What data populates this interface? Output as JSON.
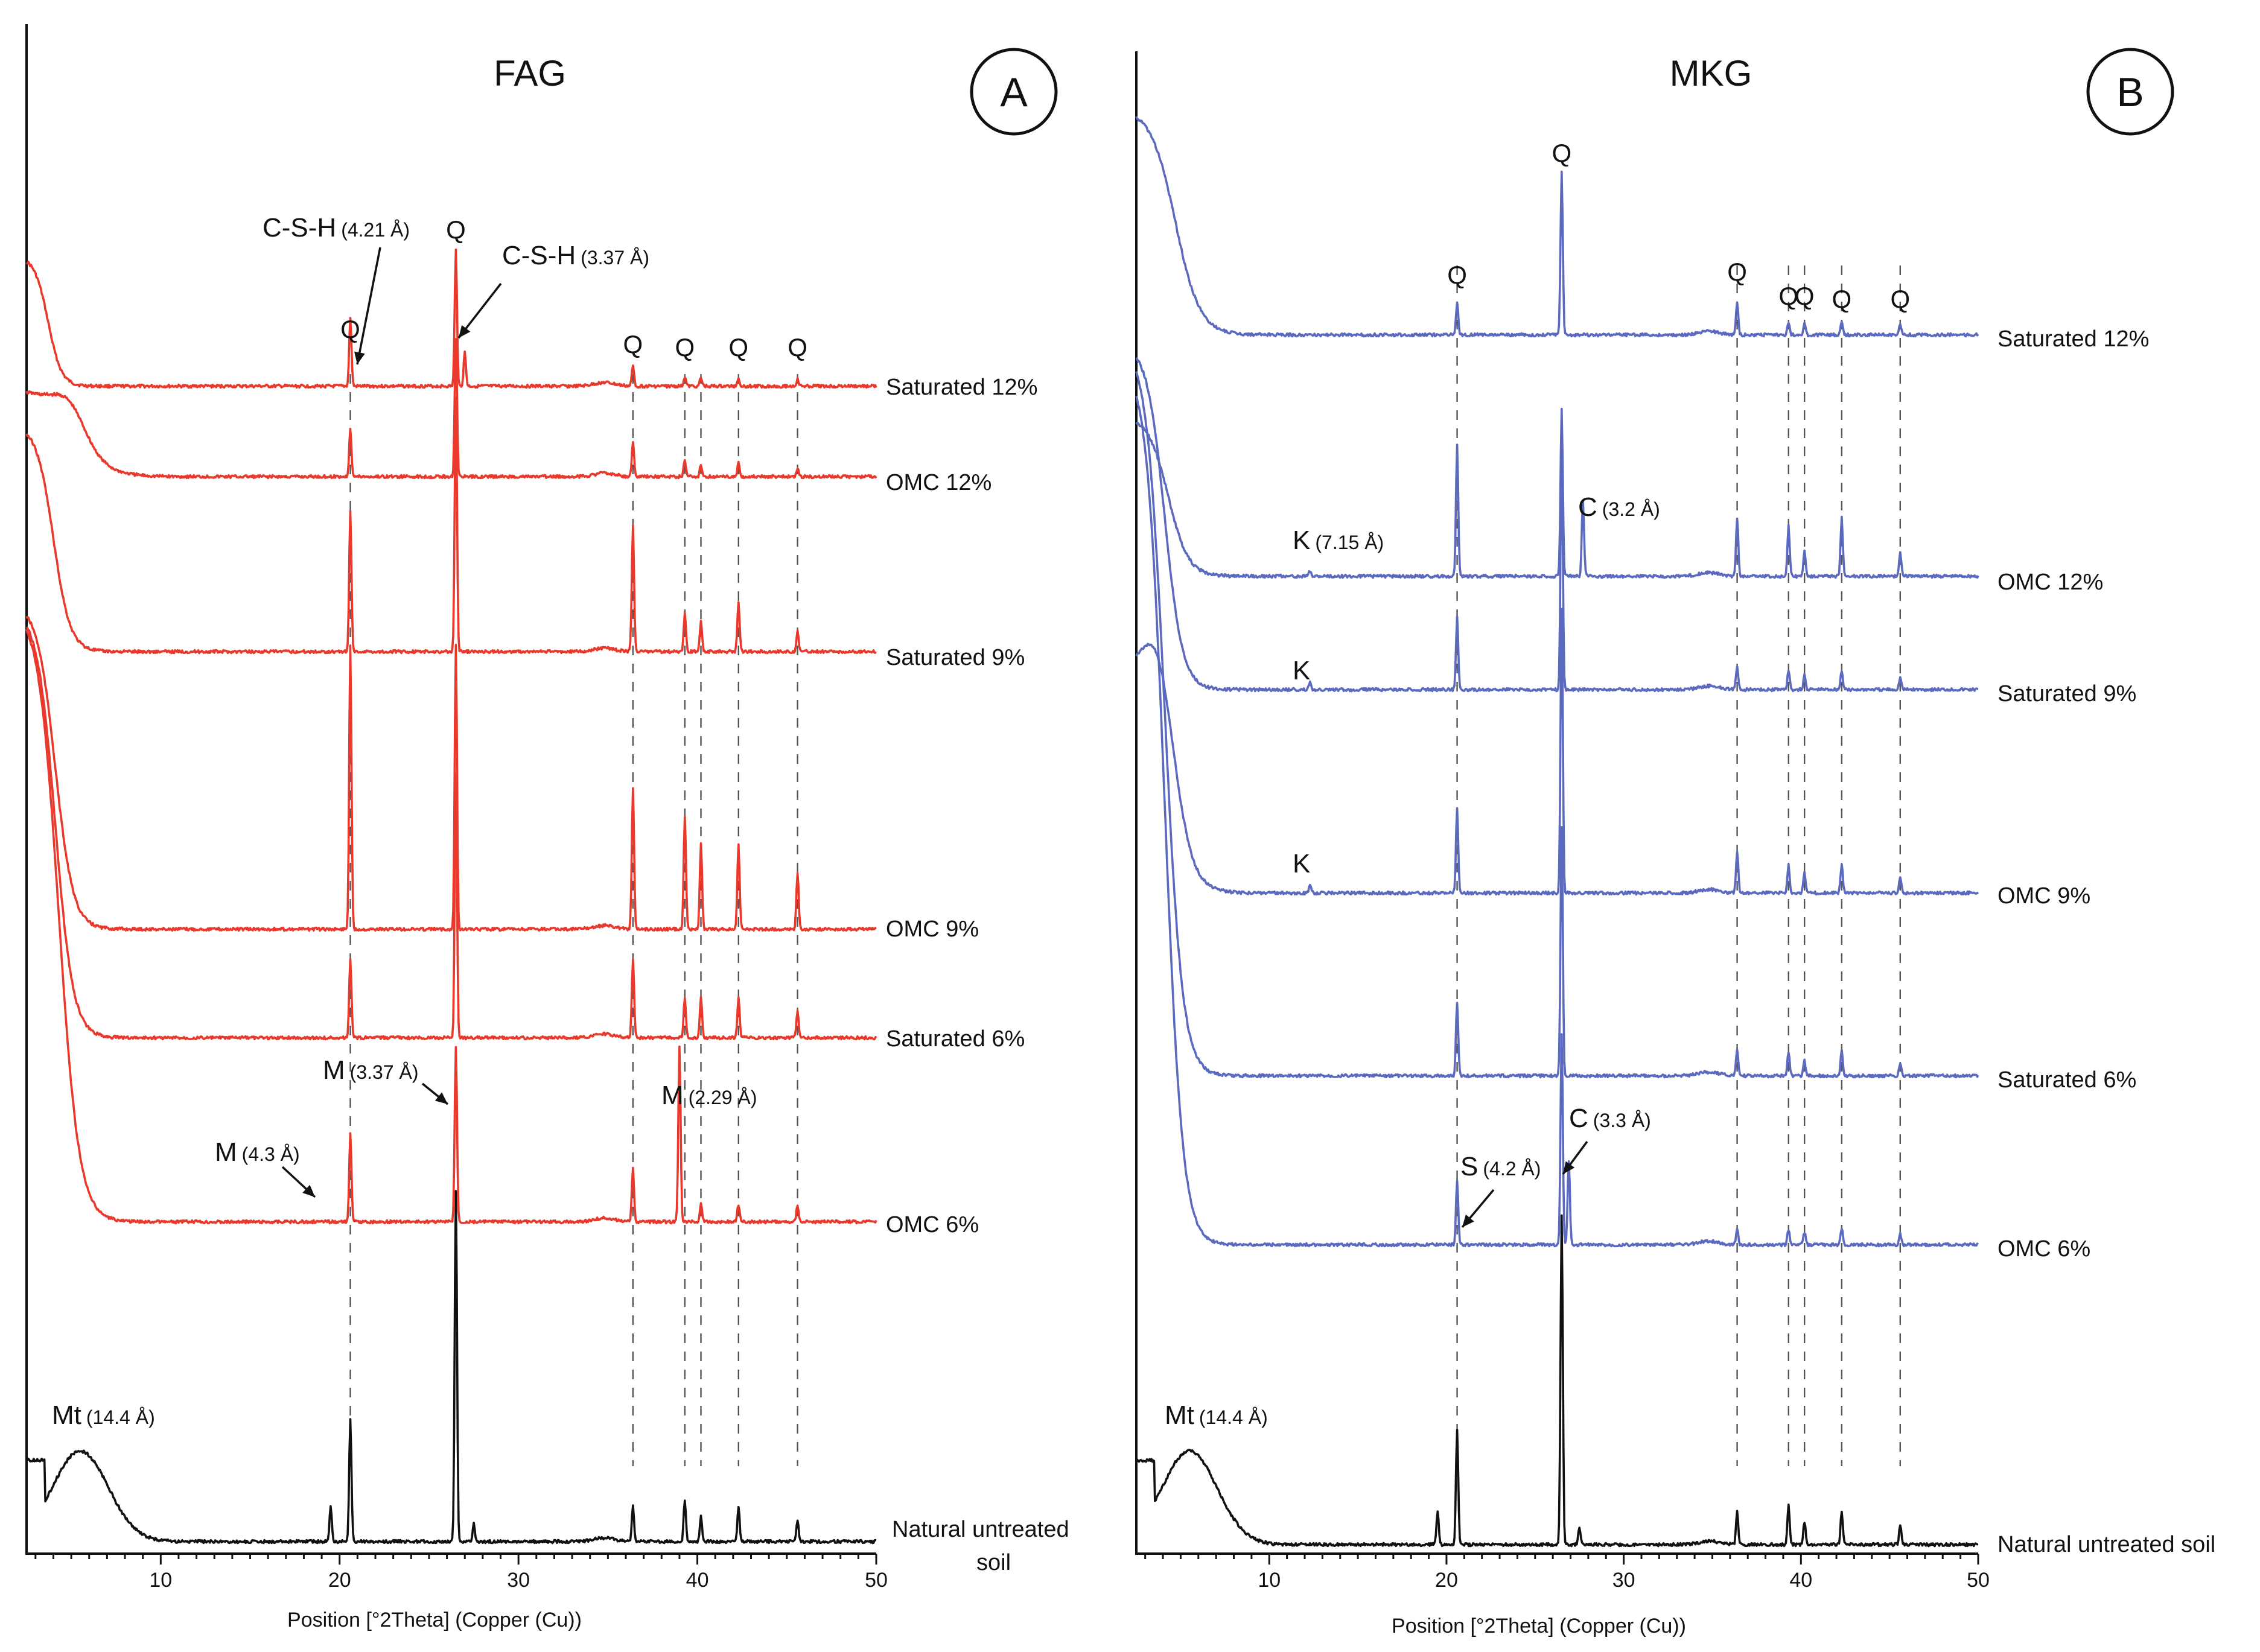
{
  "chart_data": [
    {
      "type": "line",
      "panel_letter": "A",
      "title": "FAG",
      "xlabel": "Position [°2Theta] (Copper (Cu))",
      "xlim": [
        2.5,
        50
      ],
      "xticks": [
        10,
        20,
        30,
        40,
        50
      ],
      "color": "#e8392c",
      "natural_color": "#111111",
      "reference_lines": [
        20.6,
        36.4,
        39.3,
        40.2,
        42.3,
        45.6
      ],
      "series": [
        {
          "name": "Saturated 12%",
          "fall_width": 1.2,
          "fall_tail": 3.0,
          "peaks": [
            [
              20.6,
              0.5
            ],
            [
              26.5,
              1.0
            ],
            [
              27.0,
              0.25
            ],
            [
              36.4,
              0.15
            ],
            [
              39.3,
              0.07
            ],
            [
              40.2,
              0.06
            ],
            [
              42.3,
              0.06
            ],
            [
              45.6,
              0.05
            ]
          ],
          "peak_labels": [
            {
              "text": "Q",
              "x": 20.6
            },
            {
              "text": "Q",
              "x": 26.5
            },
            {
              "text": "Q",
              "x": 36.4
            },
            {
              "text": "Q",
              "x": 39.3
            },
            {
              "text": "Q",
              "x": 42.3
            },
            {
              "text": "Q",
              "x": 45.6
            }
          ],
          "annotations": [
            {
              "main": "C-S-H",
              "sub": "(4.21 Å)",
              "x": 20.6,
              "at": "left"
            },
            {
              "main": "C-S-H",
              "sub": "(3.37 Å)",
              "x": 27.0,
              "at": "right"
            }
          ]
        },
        {
          "name": "OMC 12%",
          "fall_width": 2.8,
          "fall_tail": 3.0,
          "bump_x": 5.0,
          "peaks": [
            [
              20.6,
              0.35
            ],
            [
              26.5,
              1.0
            ],
            [
              36.4,
              0.25
            ],
            [
              39.3,
              0.12
            ],
            [
              40.2,
              0.08
            ],
            [
              42.3,
              0.1
            ],
            [
              45.6,
              0.06
            ]
          ],
          "peak_labels": [],
          "annotations": []
        },
        {
          "name": "Saturated 9%",
          "fall_width": 1.5,
          "fall_tail": 3.0,
          "peaks": [
            [
              20.6,
              0.55
            ],
            [
              26.5,
              1.0
            ],
            [
              36.4,
              0.5
            ],
            [
              39.3,
              0.15
            ],
            [
              40.2,
              0.12
            ],
            [
              42.3,
              0.2
            ],
            [
              45.6,
              0.08
            ]
          ],
          "peak_labels": [],
          "annotations": []
        },
        {
          "name": "OMC 9%",
          "fall_width": 1.6,
          "fall_tail": 3.0,
          "peaks": [
            [
              20.6,
              1.0
            ],
            [
              26.5,
              1.0
            ],
            [
              36.4,
              0.5
            ],
            [
              39.3,
              0.4
            ],
            [
              40.2,
              0.3
            ],
            [
              42.3,
              0.3
            ],
            [
              45.6,
              0.2
            ]
          ],
          "peak_labels": [],
          "annotations": []
        },
        {
          "name": "Saturated 6%",
          "fall_width": 1.6,
          "fall_tail": 3.0,
          "peaks": [
            [
              20.6,
              0.3
            ],
            [
              26.5,
              1.0
            ],
            [
              36.4,
              0.3
            ],
            [
              39.3,
              0.15
            ],
            [
              40.2,
              0.15
            ],
            [
              42.3,
              0.15
            ],
            [
              45.6,
              0.1
            ]
          ],
          "peak_labels": [],
          "annotations": []
        },
        {
          "name": "OMC 6%",
          "fall_width": 1.8,
          "fall_tail": 3.0,
          "peaks": [
            [
              20.6,
              0.5
            ],
            [
              26.5,
              1.0
            ],
            [
              36.4,
              0.3
            ],
            [
              39.0,
              1.0
            ],
            [
              40.2,
              0.1
            ],
            [
              42.3,
              0.1
            ],
            [
              45.6,
              0.1
            ]
          ],
          "peak_labels": [],
          "annotations": [
            {
              "main": "M",
              "sub": "(4.3 Å)",
              "x": 20.6,
              "at": "left"
            },
            {
              "main": "M",
              "sub": "(3.37 Å)",
              "x": 26.5,
              "at": "left"
            },
            {
              "main": "M",
              "sub": "(2.29 Å)",
              "x": 39.0,
              "at": "none"
            }
          ]
        },
        {
          "name": "Natural untreated soil",
          "fall_width": 0,
          "fall_tail": 0,
          "bump_x": 5.5,
          "peaks": [
            [
              19.5,
              0.1
            ],
            [
              20.6,
              0.35
            ],
            [
              26.5,
              1.0
            ],
            [
              27.5,
              0.05
            ],
            [
              36.4,
              0.1
            ],
            [
              39.3,
              0.12
            ],
            [
              40.2,
              0.07
            ],
            [
              42.3,
              0.1
            ],
            [
              45.6,
              0.06
            ]
          ],
          "peak_labels": [],
          "annotations": [
            {
              "main": "Mt",
              "sub": "(14.4 Å)",
              "x": 4.0,
              "at": "none"
            }
          ]
        }
      ]
    },
    {
      "type": "line",
      "panel_letter": "B",
      "title": "MKG",
      "xlabel": "Position [°2Theta] (Copper (Cu))",
      "xlim": [
        2.5,
        50
      ],
      "xticks": [
        10,
        20,
        30,
        40,
        50
      ],
      "color": "#5b6abf",
      "natural_color": "#111111",
      "reference_lines": [
        20.6,
        36.4,
        39.3,
        40.2,
        42.3,
        45.6
      ],
      "series": [
        {
          "name": "Saturated 12%",
          "fall_width": 2.2,
          "fall_tail": 3.0,
          "peaks": [
            [
              20.6,
              0.2
            ],
            [
              26.5,
              1.0
            ],
            [
              36.4,
              0.2
            ],
            [
              39.3,
              0.07
            ],
            [
              40.2,
              0.07
            ],
            [
              42.3,
              0.08
            ],
            [
              45.6,
              0.06
            ]
          ],
          "peak_labels": [
            {
              "text": "Q",
              "x": 20.6
            },
            {
              "text": "Q",
              "x": 26.5
            },
            {
              "text": "Q",
              "x": 36.4
            },
            {
              "text": "Q",
              "x": 39.3
            },
            {
              "text": "Q",
              "x": 40.2
            },
            {
              "text": "Q",
              "x": 42.3
            },
            {
              "text": "Q",
              "x": 45.6
            }
          ],
          "annotations": []
        },
        {
          "name": "OMC 12%",
          "fall_width": 1.8,
          "fall_tail": 3.0,
          "peaks": [
            [
              12.3,
              0.03
            ],
            [
              20.6,
              0.8
            ],
            [
              26.5,
              1.0
            ],
            [
              27.7,
              0.45
            ],
            [
              36.4,
              0.35
            ],
            [
              39.3,
              0.3
            ],
            [
              40.2,
              0.15
            ],
            [
              42.3,
              0.35
            ],
            [
              45.6,
              0.15
            ]
          ],
          "peak_labels": [],
          "annotations": [
            {
              "main": "K",
              "sub": "(7.15 Å)",
              "x": 12.3,
              "at": "none"
            },
            {
              "main": "C",
              "sub": "(3.2 Å)",
              "x": 27.7,
              "at": "none"
            }
          ]
        },
        {
          "name": "Saturated 9%",
          "fall_width": 1.6,
          "fall_tail": 3.0,
          "peaks": [
            [
              12.3,
              0.03
            ],
            [
              20.6,
              0.3
            ],
            [
              26.5,
              1.0
            ],
            [
              36.4,
              0.1
            ],
            [
              39.3,
              0.08
            ],
            [
              40.2,
              0.06
            ],
            [
              42.3,
              0.08
            ],
            [
              45.6,
              0.05
            ]
          ],
          "peak_labels": [],
          "annotations": [
            {
              "main": "K",
              "sub": "",
              "x": 12.3,
              "at": "none"
            }
          ]
        },
        {
          "name": "OMC 9%",
          "fall_width": 2.0,
          "fall_tail": 3.0,
          "bump_x": 3.8,
          "peaks": [
            [
              12.3,
              0.03
            ],
            [
              20.6,
              0.3
            ],
            [
              26.5,
              1.0
            ],
            [
              36.4,
              0.15
            ],
            [
              39.3,
              0.1
            ],
            [
              40.2,
              0.07
            ],
            [
              42.3,
              0.1
            ],
            [
              45.6,
              0.06
            ]
          ],
          "peak_labels": [],
          "annotations": [
            {
              "main": "K",
              "sub": "",
              "x": 12.3,
              "at": "none"
            }
          ]
        },
        {
          "name": "Saturated 6%",
          "fall_width": 1.6,
          "fall_tail": 3.0,
          "peaks": [
            [
              20.6,
              0.3
            ],
            [
              26.5,
              1.0
            ],
            [
              36.4,
              0.1
            ],
            [
              39.3,
              0.1
            ],
            [
              40.2,
              0.06
            ],
            [
              42.3,
              0.1
            ],
            [
              45.6,
              0.05
            ]
          ],
          "peak_labels": [],
          "annotations": []
        },
        {
          "name": "OMC 6%",
          "fall_width": 1.6,
          "fall_tail": 3.0,
          "peaks": [
            [
              20.6,
              0.3
            ],
            [
              26.5,
              1.0
            ],
            [
              26.9,
              0.4
            ],
            [
              36.4,
              0.07
            ],
            [
              39.3,
              0.07
            ],
            [
              40.2,
              0.06
            ],
            [
              42.3,
              0.08
            ],
            [
              45.6,
              0.05
            ]
          ],
          "peak_labels": [],
          "annotations": [
            {
              "main": "S",
              "sub": "(4.2 Å)",
              "x": 20.6,
              "at": "left"
            },
            {
              "main": "C",
              "sub": "(3.3 Å)",
              "x": 26.9,
              "at": "left"
            }
          ]
        },
        {
          "name": "Natural untreated soil",
          "fall_width": 0,
          "fall_tail": 0,
          "bump_x": 5.5,
          "peaks": [
            [
              19.5,
              0.1
            ],
            [
              20.6,
              0.35
            ],
            [
              26.5,
              1.0
            ],
            [
              27.5,
              0.05
            ],
            [
              36.4,
              0.1
            ],
            [
              39.3,
              0.12
            ],
            [
              40.2,
              0.07
            ],
            [
              42.3,
              0.1
            ],
            [
              45.6,
              0.06
            ]
          ],
          "peak_labels": [],
          "annotations": [
            {
              "main": "Mt",
              "sub": "(14.4 Å)",
              "x": 4.0,
              "at": "none"
            }
          ]
        }
      ]
    }
  ]
}
